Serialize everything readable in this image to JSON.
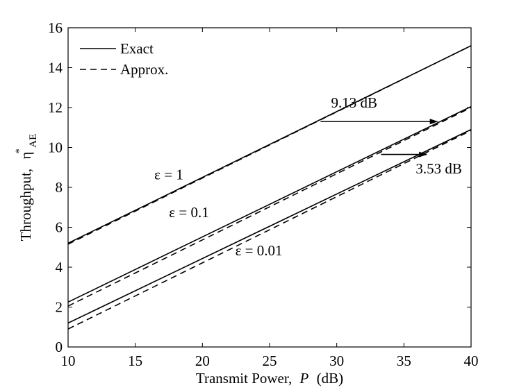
{
  "chart_data": {
    "type": "line",
    "xlabel": "Transmit Power,",
    "xlabel_symbol": "P",
    "xlabel_unit": "(dB)",
    "ylabel": "Throughput,",
    "ylabel_symbol": "η",
    "ylabel_superscript": "*",
    "ylabel_subscript": "AE",
    "xlim": [
      10,
      40
    ],
    "ylim": [
      0,
      16
    ],
    "xticks": [
      10,
      15,
      20,
      25,
      30,
      35,
      40
    ],
    "yticks": [
      0,
      2,
      4,
      6,
      8,
      10,
      12,
      14,
      16
    ],
    "grid": false,
    "legend": {
      "placement": "top-left",
      "entries": [
        {
          "label": "Exact",
          "style": "solid"
        },
        {
          "label": "Approx.",
          "style": "dashed"
        }
      ]
    },
    "series": [
      {
        "name": "Exact",
        "group": "ε = 1",
        "style": "solid",
        "x": [
          10,
          40
        ],
        "y": [
          5.2,
          15.1
        ]
      },
      {
        "name": "Approx.",
        "group": "ε = 1",
        "style": "dashed",
        "x": [
          10,
          40
        ],
        "y": [
          5.15,
          15.1
        ]
      },
      {
        "name": "Exact",
        "group": "ε = 0.1",
        "style": "solid",
        "x": [
          10,
          40
        ],
        "y": [
          2.25,
          12.05
        ]
      },
      {
        "name": "Approx.",
        "group": "ε = 0.1",
        "style": "dashed",
        "x": [
          10,
          40
        ],
        "y": [
          2.05,
          12.0
        ]
      },
      {
        "name": "Exact",
        "group": "ε = 0.01",
        "style": "solid",
        "x": [
          10,
          40
        ],
        "y": [
          1.2,
          10.9
        ]
      },
      {
        "name": "Approx.",
        "group": "ε = 0.01",
        "style": "dashed",
        "x": [
          10,
          40
        ],
        "y": [
          0.9,
          10.85
        ]
      }
    ],
    "annotations": [
      {
        "text": "ε = 1",
        "x": 17.5,
        "y": 8.4
      },
      {
        "text": "ε = 0.1",
        "x": 19.0,
        "y": 6.5
      },
      {
        "text": "ε = 0.01",
        "x": 24.2,
        "y": 4.6
      },
      {
        "text": "9.13 dB",
        "x": 31.3,
        "y": 12.0
      },
      {
        "text": "3.53 dB",
        "x": 37.6,
        "y": 8.7
      }
    ],
    "arrows": [
      {
        "label": "9.13 dB",
        "x_from": 28.8,
        "x_to": 37.5,
        "y": 11.3
      },
      {
        "label": "3.53 dB",
        "x_from": 33.3,
        "x_to": 36.7,
        "y": 9.65
      }
    ]
  }
}
